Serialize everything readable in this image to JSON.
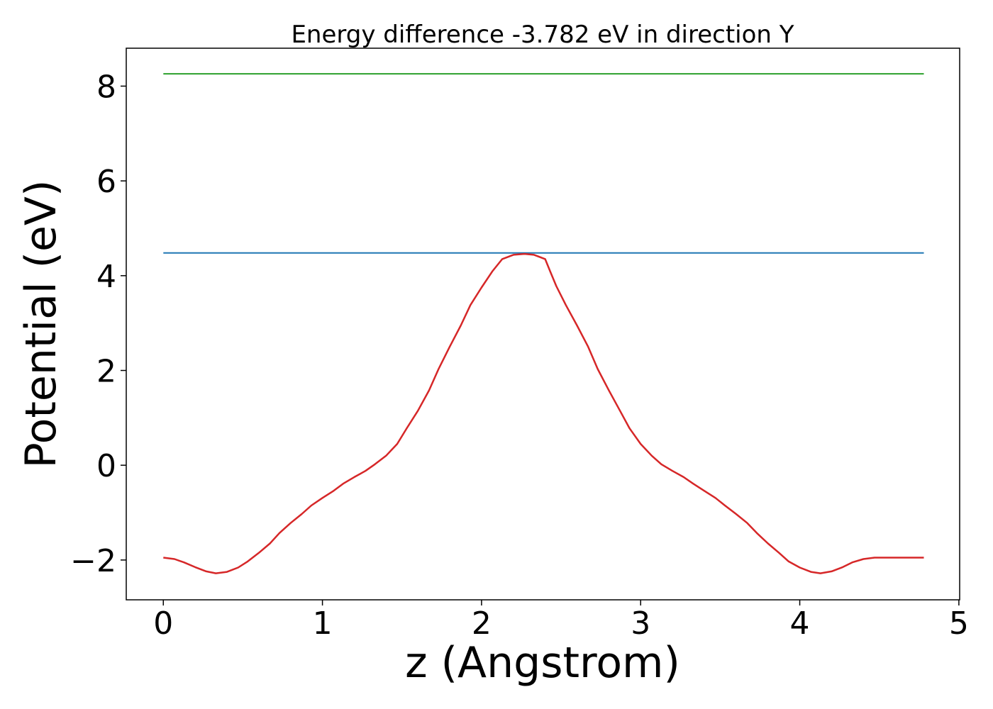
{
  "chart_data": {
    "type": "line",
    "title": "Energy difference -3.782 eV in direction Y",
    "xlabel": "z (Angstrom)",
    "ylabel": "Potential (eV)",
    "xlim": [
      -0.233,
      5.005
    ],
    "ylim": [
      -2.84,
      8.8
    ],
    "xticks": [
      0,
      1,
      2,
      3,
      4,
      5
    ],
    "xtick_labels": [
      "0",
      "1",
      "2",
      "3",
      "4",
      "5"
    ],
    "yticks": [
      -2,
      0,
      2,
      4,
      6,
      8
    ],
    "ytick_labels": [
      "−2",
      "0",
      "2",
      "4",
      "6",
      "8"
    ],
    "grid": false,
    "series": [
      {
        "color": "#2ca02c",
        "x": [
          0,
          4.78
        ],
        "y": [
          8.26,
          8.26
        ]
      },
      {
        "color": "#1f77b4",
        "x": [
          0,
          4.78
        ],
        "y": [
          4.48,
          4.48
        ]
      },
      {
        "color": "#d62728",
        "x": [
          0,
          0.07,
          0.13,
          0.2,
          0.27,
          0.33,
          0.4,
          0.47,
          0.53,
          0.6,
          0.67,
          0.73,
          0.8,
          0.87,
          0.93,
          1.0,
          1.07,
          1.13,
          1.2,
          1.27,
          1.33,
          1.4,
          1.47,
          1.53,
          1.6,
          1.67,
          1.73,
          1.8,
          1.87,
          1.93,
          2.0,
          2.07,
          2.13,
          2.2,
          2.27,
          2.33,
          2.4,
          2.43,
          2.47,
          2.53,
          2.6,
          2.67,
          2.73,
          2.8,
          2.87,
          2.93,
          3.0,
          3.07,
          3.13,
          3.2,
          3.27,
          3.33,
          3.4,
          3.47,
          3.53,
          3.6,
          3.67,
          3.73,
          3.8,
          3.87,
          3.93,
          4.0,
          4.07,
          4.13,
          4.2,
          4.27,
          4.33,
          4.4,
          4.47,
          4.53,
          4.6,
          4.67,
          4.73,
          4.78
        ],
        "y": [
          -1.95,
          -1.98,
          -2.05,
          -2.15,
          -2.24,
          -2.28,
          -2.25,
          -2.16,
          -2.03,
          -1.85,
          -1.65,
          -1.43,
          -1.22,
          -1.03,
          -0.85,
          -0.69,
          -0.54,
          -0.39,
          -0.25,
          -0.12,
          0.02,
          0.2,
          0.45,
          0.78,
          1.15,
          1.58,
          2.03,
          2.5,
          2.95,
          3.38,
          3.75,
          4.1,
          4.35,
          4.44,
          4.46,
          4.44,
          4.35,
          4.1,
          3.78,
          3.38,
          2.95,
          2.5,
          2.03,
          1.58,
          1.15,
          0.78,
          0.45,
          0.2,
          0.02,
          -0.12,
          -0.25,
          -0.39,
          -0.54,
          -0.69,
          -0.85,
          -1.03,
          -1.22,
          -1.43,
          -1.65,
          -1.85,
          -2.03,
          -2.16,
          -2.25,
          -2.28,
          -2.24,
          -2.15,
          -2.05,
          -1.98,
          -1.95,
          -1.95,
          -1.95,
          -1.95,
          -1.95,
          -1.95
        ]
      }
    ]
  }
}
